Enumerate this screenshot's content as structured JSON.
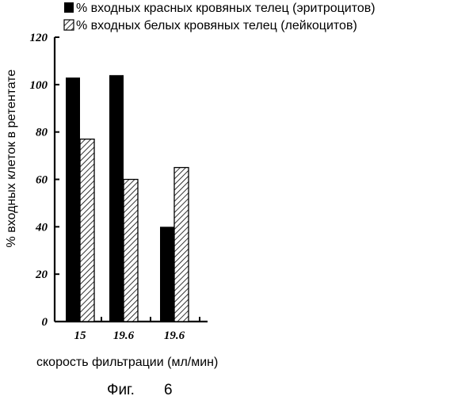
{
  "chart_data": {
    "type": "bar",
    "categories": [
      "15",
      "19.6",
      "19.6"
    ],
    "series": [
      {
        "name": "% входных красных кровяных телец (эритроцитов)",
        "values": [
          103,
          104,
          40
        ],
        "pattern": "solid"
      },
      {
        "name": "% входных белых кровяных телец (лейкоцитов)",
        "values": [
          77,
          60,
          65
        ],
        "pattern": "hatched"
      }
    ],
    "xlabel": "скорость фильтрации (мл/мин)",
    "ylabel": "% входных клеток в ретентате",
    "ylim": [
      0,
      120
    ],
    "yticks": [
      "0",
      "20",
      "40",
      "60",
      "80",
      "100",
      "120"
    ],
    "grid": false,
    "legend": "top"
  },
  "caption": {
    "prefix": "Фиг.",
    "number": "6"
  },
  "colors": {
    "bar_solid": "#000000",
    "axis": "#000000",
    "hatch": "#000000"
  }
}
